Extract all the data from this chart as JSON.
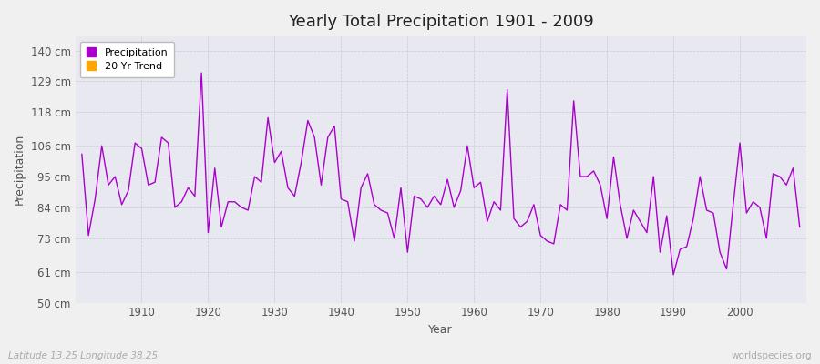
{
  "title": "Yearly Total Precipitation 1901 - 2009",
  "xlabel": "Year",
  "ylabel": "Precipitation",
  "subtitle_left": "Latitude 13.25 Longitude 38.25",
  "subtitle_right": "worldspecies.org",
  "line_color": "#AA00CC",
  "trend_color": "#FFA500",
  "background_color": "#E8E8F0",
  "fig_background": "#F0F0F0",
  "grid_color": "#C8C8D8",
  "ytick_labels": [
    "50 cm",
    "61 cm",
    "73 cm",
    "84 cm",
    "95 cm",
    "106 cm",
    "118 cm",
    "129 cm",
    "140 cm"
  ],
  "ytick_values": [
    50,
    61,
    73,
    84,
    95,
    106,
    118,
    129,
    140
  ],
  "ylim": [
    50,
    145
  ],
  "xlim": [
    1900,
    2010
  ],
  "xticks": [
    1910,
    1920,
    1930,
    1940,
    1950,
    1960,
    1970,
    1980,
    1990,
    2000
  ],
  "years": [
    1901,
    1902,
    1903,
    1904,
    1905,
    1906,
    1907,
    1908,
    1909,
    1910,
    1911,
    1912,
    1913,
    1914,
    1915,
    1916,
    1917,
    1918,
    1919,
    1920,
    1921,
    1922,
    1923,
    1924,
    1925,
    1926,
    1927,
    1928,
    1929,
    1930,
    1931,
    1932,
    1933,
    1934,
    1935,
    1936,
    1937,
    1938,
    1939,
    1940,
    1941,
    1942,
    1943,
    1944,
    1945,
    1946,
    1947,
    1948,
    1949,
    1950,
    1951,
    1952,
    1953,
    1954,
    1955,
    1956,
    1957,
    1958,
    1959,
    1960,
    1961,
    1962,
    1963,
    1964,
    1965,
    1966,
    1967,
    1968,
    1969,
    1970,
    1971,
    1972,
    1973,
    1974,
    1975,
    1976,
    1977,
    1978,
    1979,
    1980,
    1981,
    1982,
    1983,
    1984,
    1985,
    1986,
    1987,
    1988,
    1989,
    1990,
    1991,
    1992,
    1993,
    1994,
    1995,
    1996,
    1997,
    1998,
    1999,
    2000,
    2001,
    2002,
    2003,
    2004,
    2005,
    2006,
    2007,
    2008,
    2009
  ],
  "precip": [
    103,
    74,
    87,
    106,
    92,
    95,
    85,
    90,
    107,
    105,
    92,
    93,
    109,
    107,
    84,
    86,
    91,
    88,
    132,
    75,
    98,
    77,
    86,
    86,
    84,
    83,
    95,
    93,
    116,
    100,
    104,
    91,
    88,
    100,
    115,
    109,
    92,
    109,
    113,
    87,
    86,
    72,
    91,
    96,
    85,
    83,
    82,
    73,
    91,
    68,
    88,
    87,
    84,
    88,
    85,
    94,
    84,
    90,
    106,
    91,
    93,
    79,
    86,
    83,
    126,
    80,
    77,
    79,
    85,
    74,
    72,
    71,
    85,
    83,
    122,
    95,
    95,
    97,
    92,
    80,
    102,
    85,
    73,
    83,
    79,
    75,
    95,
    68,
    81,
    60,
    69,
    70,
    80,
    95,
    83,
    82,
    68,
    62,
    85,
    107,
    82,
    86,
    84,
    73,
    96,
    95,
    92,
    98,
    77
  ]
}
